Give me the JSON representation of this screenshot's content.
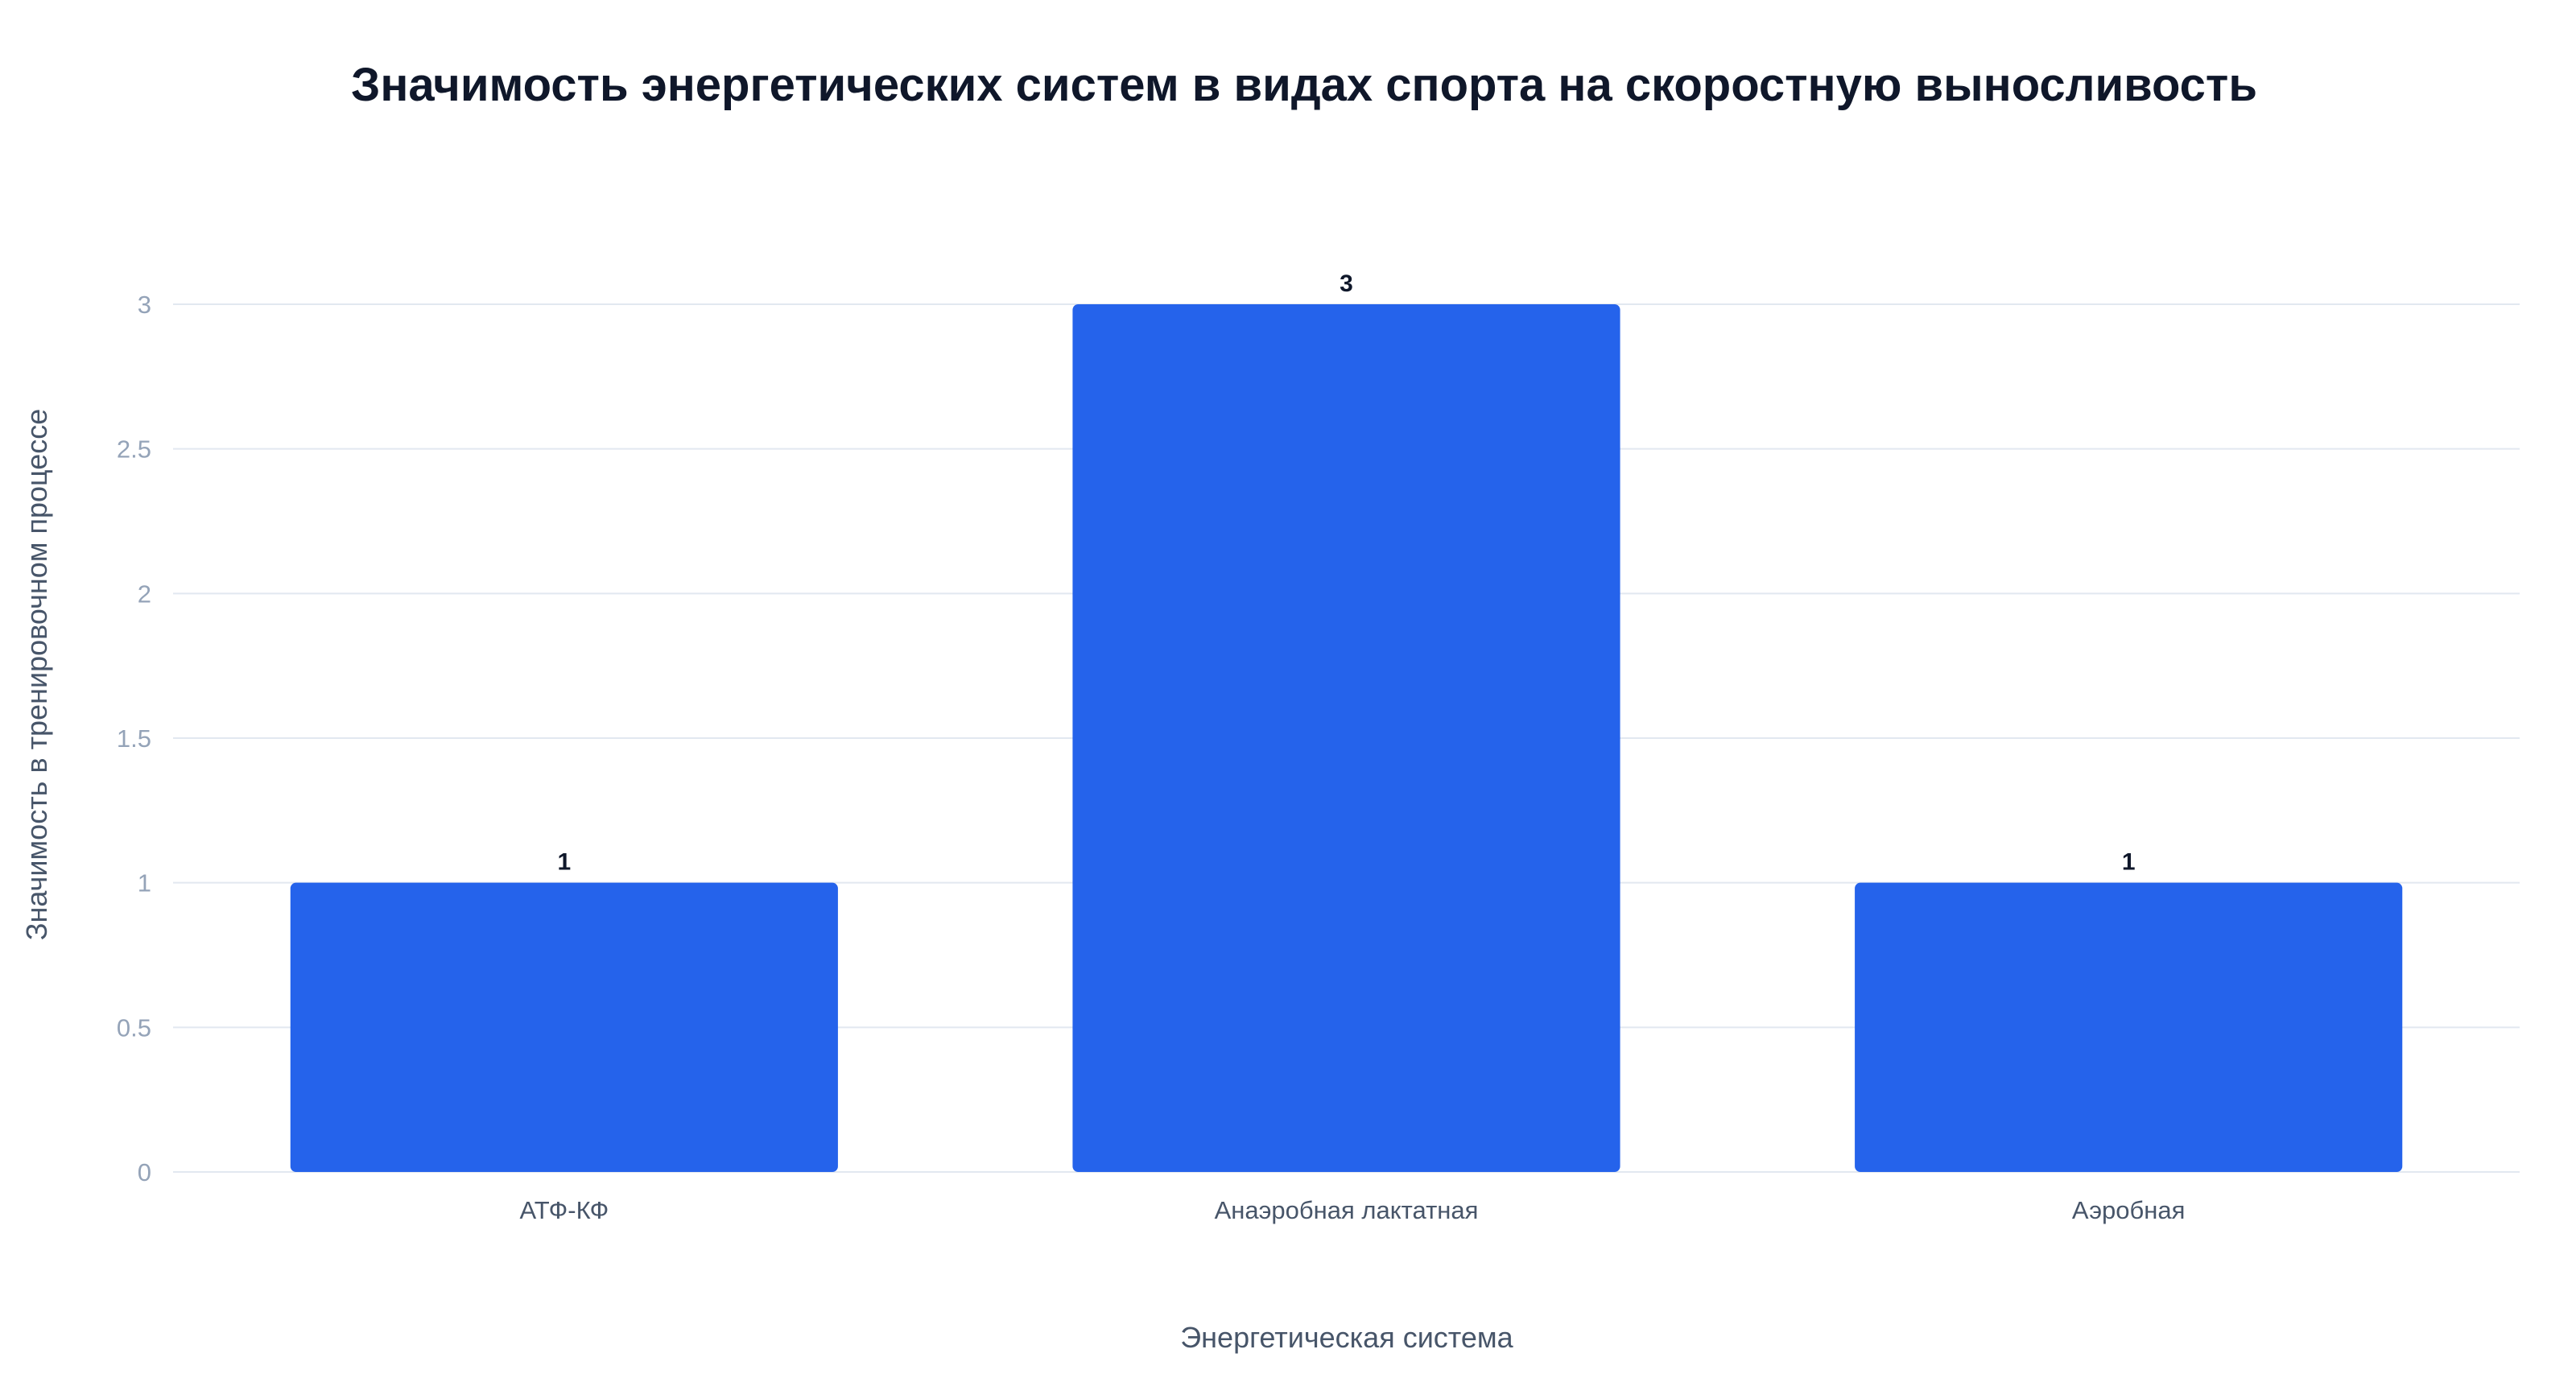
{
  "chart_data": {
    "type": "bar",
    "title": "Значимость энергетических систем в видах спорта на скоростную выносливость",
    "xlabel": "Энергетическая система",
    "ylabel": "Значимость в тренировочном процессе",
    "categories": [
      "АТФ-КФ",
      "Анаэробная лактатная",
      "Аэробная"
    ],
    "values": [
      1,
      3,
      1
    ],
    "data_labels": [
      "1",
      "3",
      "1"
    ],
    "ylim": [
      0,
      3
    ],
    "yticks": [
      0,
      0.5,
      1,
      1.5,
      2,
      2.5,
      3
    ],
    "ytick_labels": [
      "0",
      "0.5",
      "1",
      "1.5",
      "2",
      "2.5",
      "3"
    ],
    "grid": true,
    "legend": "none",
    "bar_color": "#2563eb"
  }
}
